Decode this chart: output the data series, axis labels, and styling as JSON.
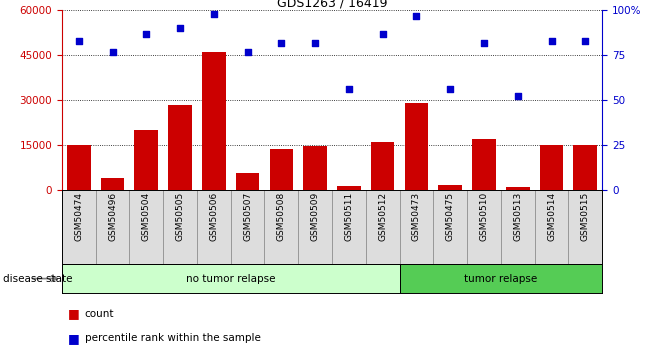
{
  "title": "GDS1263 / 16419",
  "categories": [
    "GSM50474",
    "GSM50496",
    "GSM50504",
    "GSM50505",
    "GSM50506",
    "GSM50507",
    "GSM50508",
    "GSM50509",
    "GSM50511",
    "GSM50512",
    "GSM50473",
    "GSM50475",
    "GSM50510",
    "GSM50513",
    "GSM50514",
    "GSM50515"
  ],
  "counts": [
    15000,
    4000,
    20000,
    28500,
    46000,
    5500,
    13500,
    14500,
    1200,
    16000,
    29000,
    1500,
    17000,
    1000,
    15000,
    15000
  ],
  "percentile_ranks": [
    83,
    77,
    87,
    90,
    98,
    77,
    82,
    82,
    56,
    87,
    97,
    56,
    82,
    52,
    83,
    83
  ],
  "no_tumor_count": 10,
  "tumor_count": 6,
  "bar_color": "#cc0000",
  "dot_color": "#0000cc",
  "no_tumor_bg": "#ccffcc",
  "tumor_bg": "#55cc55",
  "left_axis_color": "#cc0000",
  "right_axis_color": "#0000cc",
  "ylim_left": [
    0,
    60000
  ],
  "ylim_right": [
    0,
    100
  ],
  "yticks_left": [
    0,
    15000,
    30000,
    45000,
    60000
  ],
  "yticks_right": [
    0,
    25,
    50,
    75,
    100
  ],
  "ytick_labels_right": [
    "0",
    "25",
    "50",
    "75",
    "100%"
  ],
  "bg_color": "#ffffff"
}
